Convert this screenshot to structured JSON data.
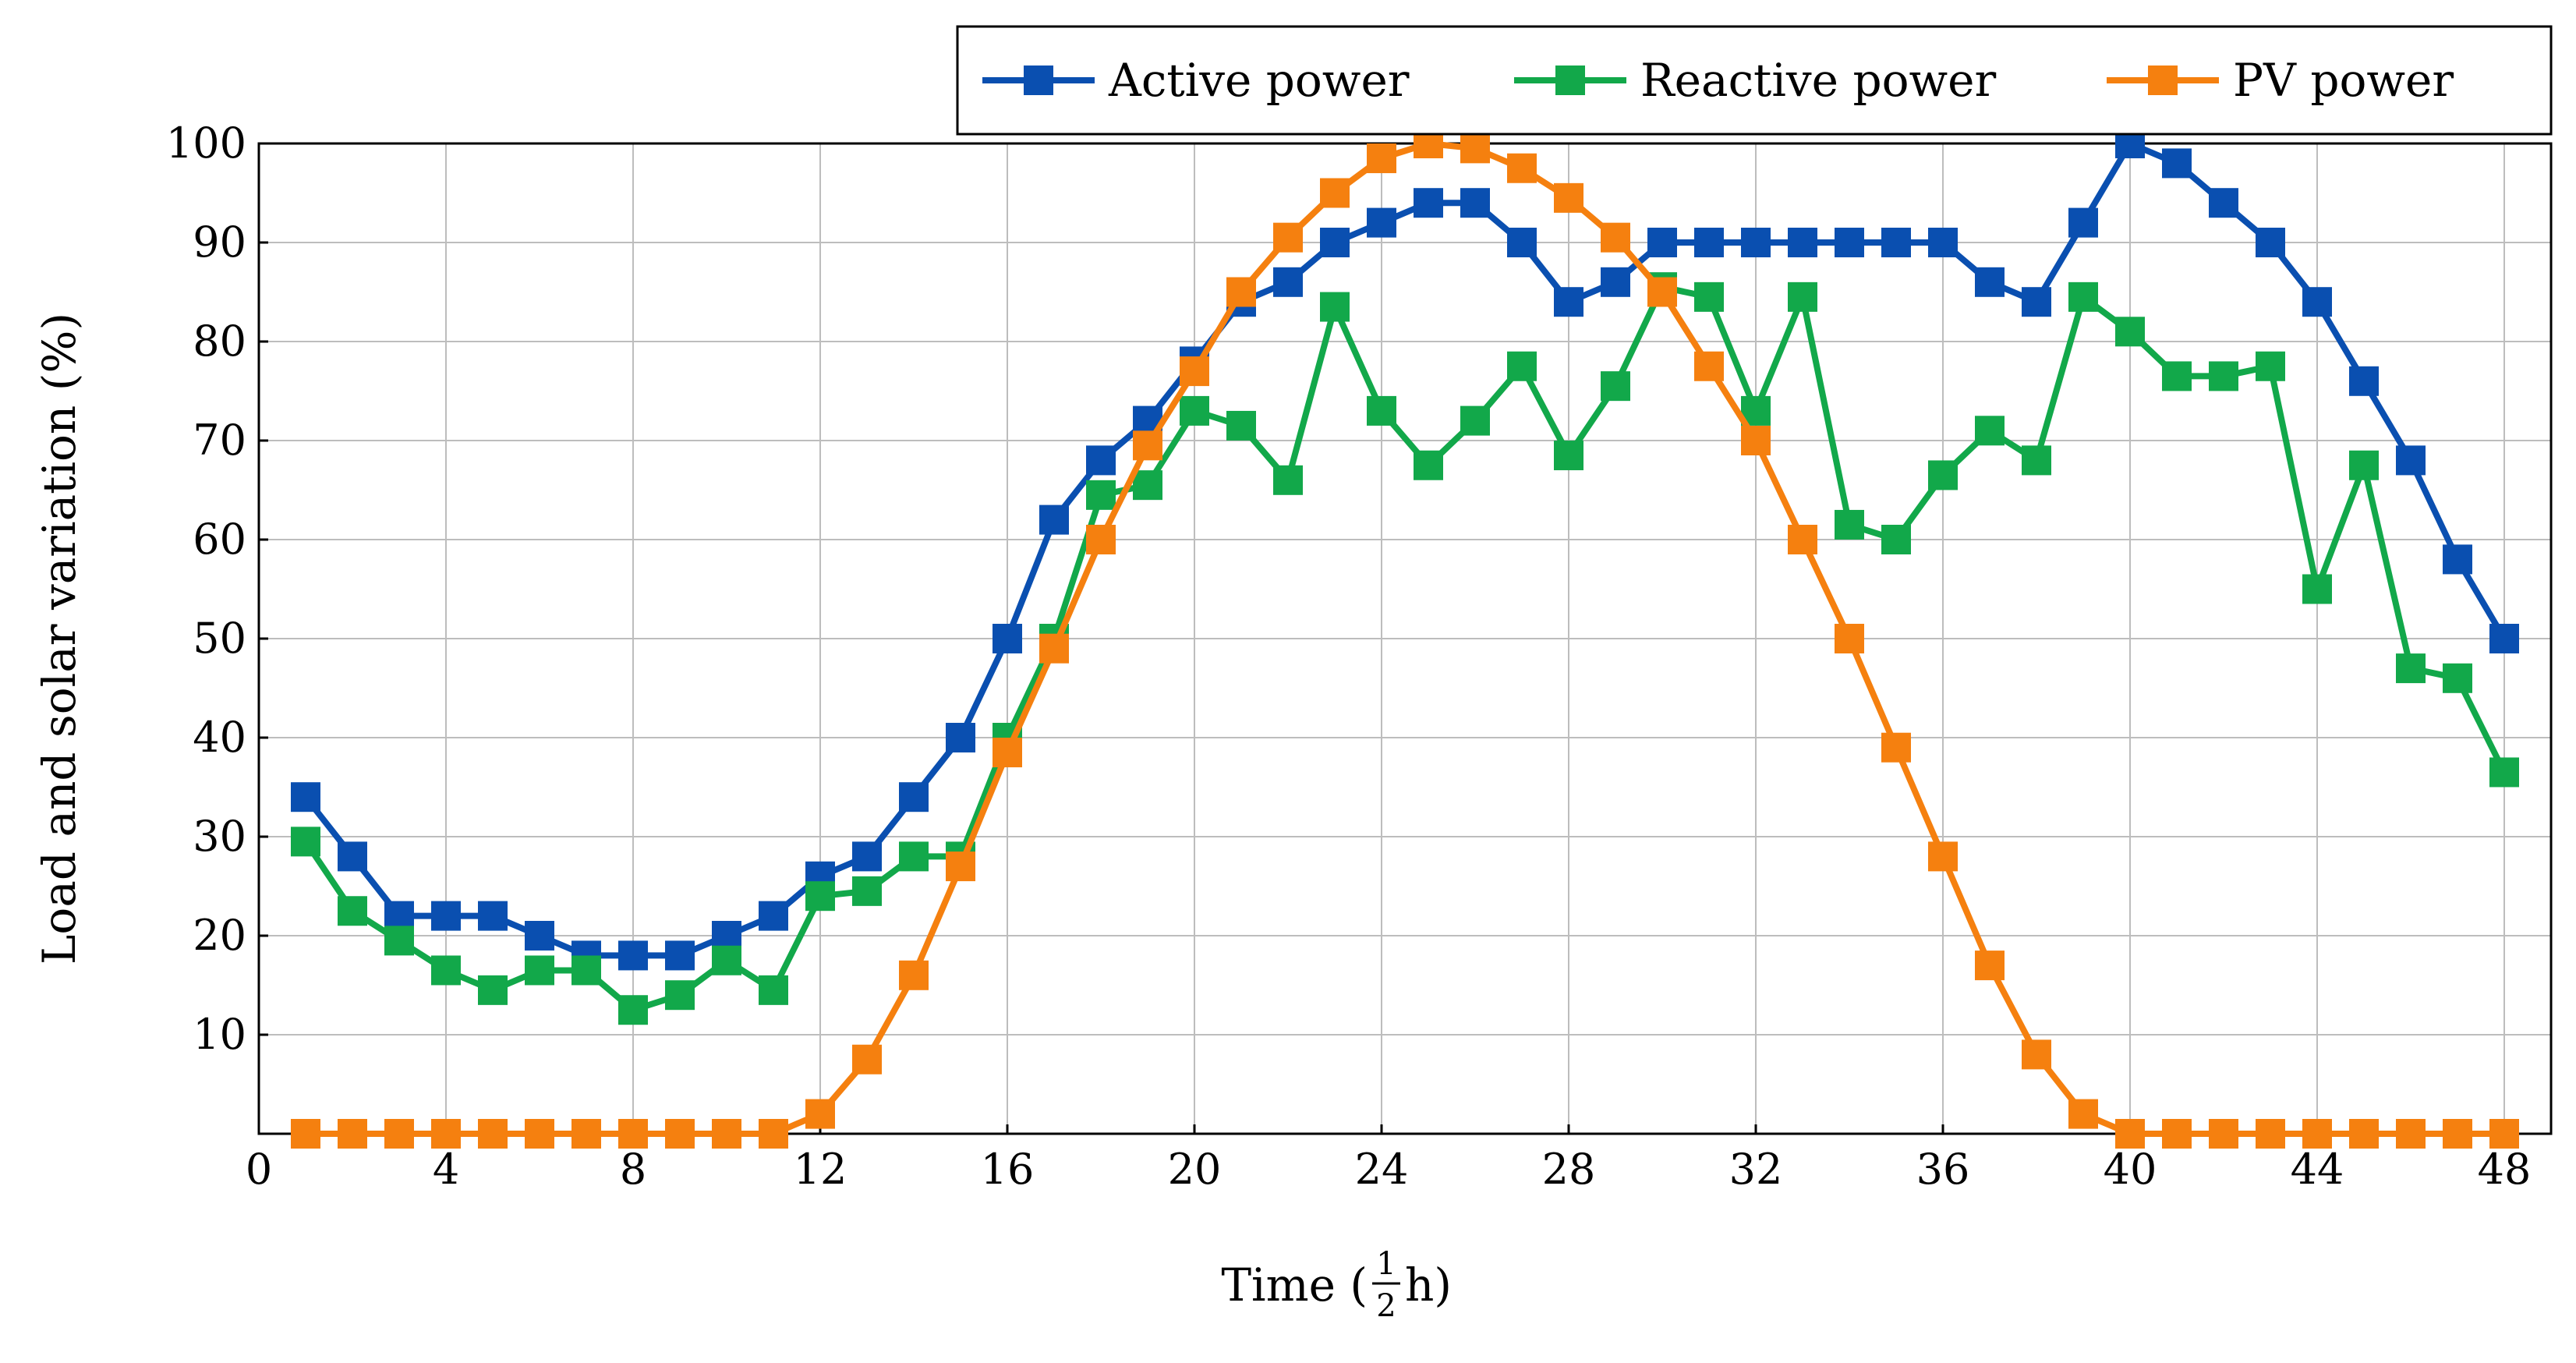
{
  "chart_data": {
    "type": "line",
    "title": "",
    "xlabel": "Time (",
    "xlabel_fraction": {
      "numerator": "1",
      "denominator": "2"
    },
    "xlabel_suffix": " h)",
    "ylabel": "Load and solar variation (%)",
    "xlim": [
      0,
      49
    ],
    "ylim": [
      0,
      100
    ],
    "xticks": [
      0,
      4,
      8,
      12,
      16,
      20,
      24,
      28,
      32,
      36,
      40,
      44,
      48
    ],
    "yticks": [
      10,
      20,
      30,
      40,
      50,
      60,
      70,
      80,
      90,
      100
    ],
    "grid": true,
    "legend_position": "top-right-outside",
    "x": [
      1,
      2,
      3,
      4,
      5,
      6,
      7,
      8,
      9,
      10,
      11,
      12,
      13,
      14,
      15,
      16,
      17,
      18,
      19,
      20,
      21,
      22,
      23,
      24,
      25,
      26,
      27,
      28,
      29,
      30,
      31,
      32,
      33,
      34,
      35,
      36,
      37,
      38,
      39,
      40,
      41,
      42,
      43,
      44,
      45,
      46,
      47,
      48
    ],
    "series": [
      {
        "name": "Active power",
        "color": "#0a4fb0",
        "values": [
          34,
          28,
          22,
          22,
          22,
          20,
          18,
          18,
          18,
          20,
          22,
          26,
          28,
          34,
          40,
          50,
          62,
          68,
          72,
          78,
          84,
          86,
          90,
          92,
          94,
          94,
          90,
          84,
          86,
          90,
          90,
          90,
          90,
          90,
          90,
          90,
          86,
          84,
          92,
          100,
          98,
          94,
          90,
          84,
          76,
          68,
          58,
          50
        ]
      },
      {
        "name": "Reactive power",
        "color": "#12a84a",
        "values": [
          29.5,
          22.5,
          19.5,
          16.5,
          14.5,
          16.5,
          16.5,
          12.5,
          14,
          17.5,
          14.5,
          24,
          24.5,
          28,
          28,
          40,
          50,
          64.5,
          65.5,
          73,
          71.5,
          66,
          83.5,
          73,
          67.5,
          72,
          77.5,
          68.5,
          75.5,
          85.5,
          84.5,
          73,
          84.5,
          61.5,
          60,
          66.5,
          71,
          68,
          84.5,
          81,
          76.5,
          76.5,
          77.5,
          55,
          67.5,
          47,
          46,
          36.5
        ]
      },
      {
        "name": "PV power",
        "color": "#f5800f",
        "values": [
          0,
          0,
          0,
          0,
          0,
          0,
          0,
          0,
          0,
          0,
          0,
          2,
          7.5,
          16,
          27,
          38.5,
          49,
          60,
          69.5,
          77,
          85,
          90.5,
          95,
          98.5,
          100,
          99.5,
          97.5,
          94.5,
          90.5,
          85,
          77.5,
          70,
          60,
          50,
          39,
          28,
          17,
          8,
          2,
          0,
          0,
          0,
          0,
          0,
          0,
          0,
          0,
          0
        ]
      }
    ]
  }
}
